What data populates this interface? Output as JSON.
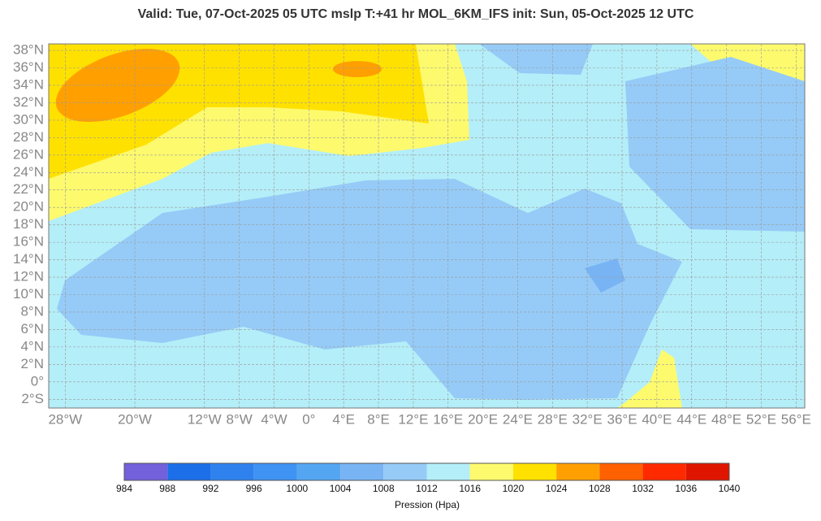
{
  "map": {
    "title": "Valid: Tue, 07-Oct-2025   05 UTC   mslp   T:+41 hr   MOL_6KM_IFS      init: Sun, 05-Oct-2025   12 UTC",
    "lonlim": [
      -29.9,
      57
    ],
    "latlim": [
      -3,
      38.75
    ],
    "lon_ticks": [
      {
        "value": -28,
        "label": "28°W"
      },
      {
        "value": -20,
        "label": "20°W"
      },
      {
        "value": -12,
        "label": "12°W"
      },
      {
        "value": -8,
        "label": "8°W"
      },
      {
        "value": -4,
        "label": "4°W"
      },
      {
        "value": 0,
        "label": "0°"
      },
      {
        "value": 4,
        "label": "4°E"
      },
      {
        "value": 8,
        "label": "8°E"
      },
      {
        "value": 12,
        "label": "12°E"
      },
      {
        "value": 16,
        "label": "16°E"
      },
      {
        "value": 20,
        "label": "20°E"
      },
      {
        "value": 24,
        "label": "24°E"
      },
      {
        "value": 28,
        "label": "28°E"
      },
      {
        "value": 32,
        "label": "32°E"
      },
      {
        "value": 36,
        "label": "36°E"
      },
      {
        "value": 40,
        "label": "40°E"
      },
      {
        "value": 44,
        "label": "44°E"
      },
      {
        "value": 48,
        "label": "48°E"
      },
      {
        "value": 52,
        "label": "52°E"
      },
      {
        "value": 56,
        "label": "56°E"
      }
    ],
    "lat_ticks": [
      {
        "value": 38,
        "label": "38°N"
      },
      {
        "value": 36,
        "label": "36°N"
      },
      {
        "value": 34,
        "label": "34°N"
      },
      {
        "value": 32,
        "label": "32°N"
      },
      {
        "value": 30,
        "label": "30°N"
      },
      {
        "value": 28,
        "label": "28°N"
      },
      {
        "value": 26,
        "label": "26°N"
      },
      {
        "value": 24,
        "label": "24°N"
      },
      {
        "value": 22,
        "label": "22°N"
      },
      {
        "value": 20,
        "label": "20°N"
      },
      {
        "value": 18,
        "label": "18°N"
      },
      {
        "value": 16,
        "label": "16°N"
      },
      {
        "value": 14,
        "label": "14°N"
      },
      {
        "value": 12,
        "label": "12°N"
      },
      {
        "value": 10,
        "label": "10°N"
      },
      {
        "value": 8,
        "label": "8°N"
      },
      {
        "value": 6,
        "label": "6°N"
      },
      {
        "value": 4,
        "label": "4°N"
      },
      {
        "value": 2,
        "label": "2°N"
      },
      {
        "value": 0,
        "label": "0°"
      },
      {
        "value": -2,
        "label": "2°S"
      }
    ],
    "colorbar": {
      "label": "Pression (Hpa)",
      "ticks": [
        984,
        988,
        992,
        996,
        1000,
        1004,
        1008,
        1012,
        1016,
        1020,
        1024,
        1028,
        1032,
        1036,
        1040
      ],
      "colors": [
        "#7360db",
        "#1c6fe8",
        "#2f82ee",
        "#3f93f2",
        "#55a6f2",
        "#78b4f4",
        "#96cbf7",
        "#b4eef8",
        "#fdfa6e",
        "#ffe100",
        "#ffa000",
        "#ff6000",
        "#ff2a00",
        "#e01500"
      ]
    }
  }
}
